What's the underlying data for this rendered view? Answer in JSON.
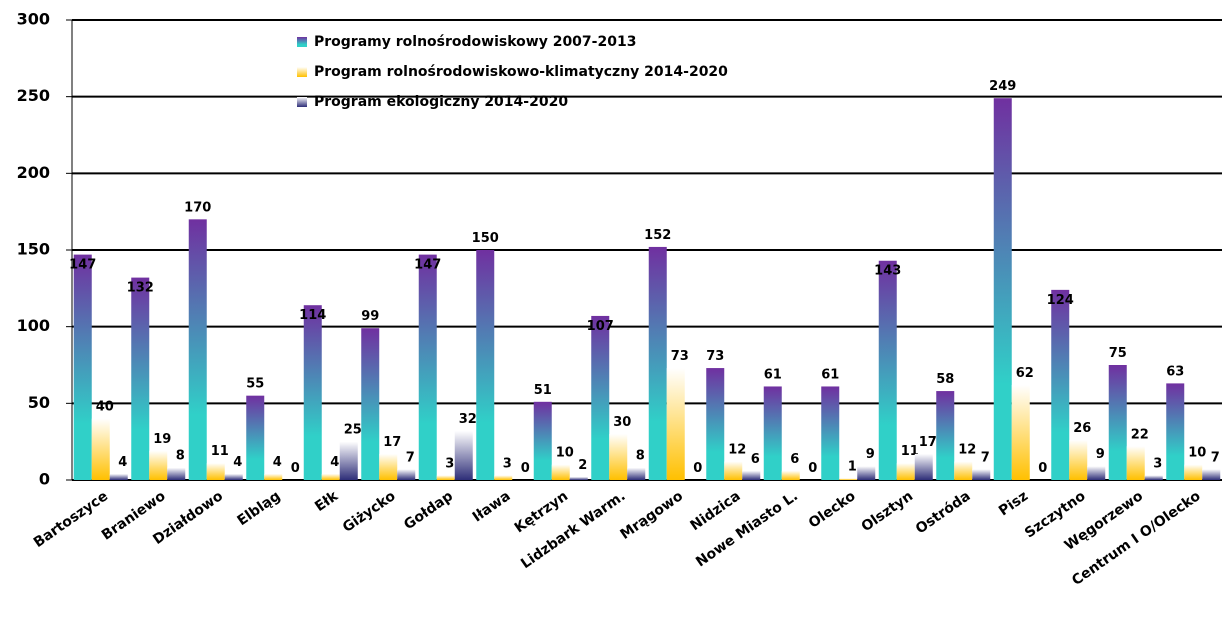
{
  "chart_data": {
    "type": "bar",
    "categories": [
      "Bartoszyce",
      "Braniewo",
      "Działdowo",
      "Elbląg",
      "Ełk",
      "Giżycko",
      "Gołdap",
      "Iława",
      "Kętrzyn",
      "Lidzbark Warm.",
      "Mrągowo",
      "Nidzica",
      "Nowe Miasto L.",
      "Olecko",
      "Olsztyn",
      "Ostróda",
      "Pisz",
      "Szczytno",
      "Węgorzewo",
      "Centrum I O/Olecko"
    ],
    "series": [
      {
        "name": "Programy rolnośrodowiskowy 2007-2013",
        "color": "#7030a0",
        "values": [
          147,
          132,
          170,
          55,
          114,
          99,
          147,
          150,
          51,
          107,
          152,
          73,
          61,
          61,
          143,
          58,
          249,
          124,
          75,
          63
        ]
      },
      {
        "name": "Program rolnośrodowiskowo-klimatyczny 2014-2020",
        "color": "#ffc000",
        "values": [
          40,
          19,
          11,
          4,
          4,
          17,
          3,
          3,
          10,
          30,
          73,
          12,
          6,
          1,
          11,
          12,
          62,
          26,
          22,
          10
        ]
      },
      {
        "name": "Program ekologiczny 2014-2020",
        "color": "#2e2e78",
        "values": [
          4,
          8,
          4,
          0,
          25,
          7,
          32,
          0,
          2,
          8,
          0,
          6,
          0,
          9,
          17,
          7,
          0,
          9,
          3,
          7
        ]
      }
    ],
    "ylim": [
      0,
      300
    ],
    "yticks": [
      0,
      50,
      100,
      150,
      200,
      250,
      300
    ],
    "grid": true,
    "legend": "top"
  }
}
